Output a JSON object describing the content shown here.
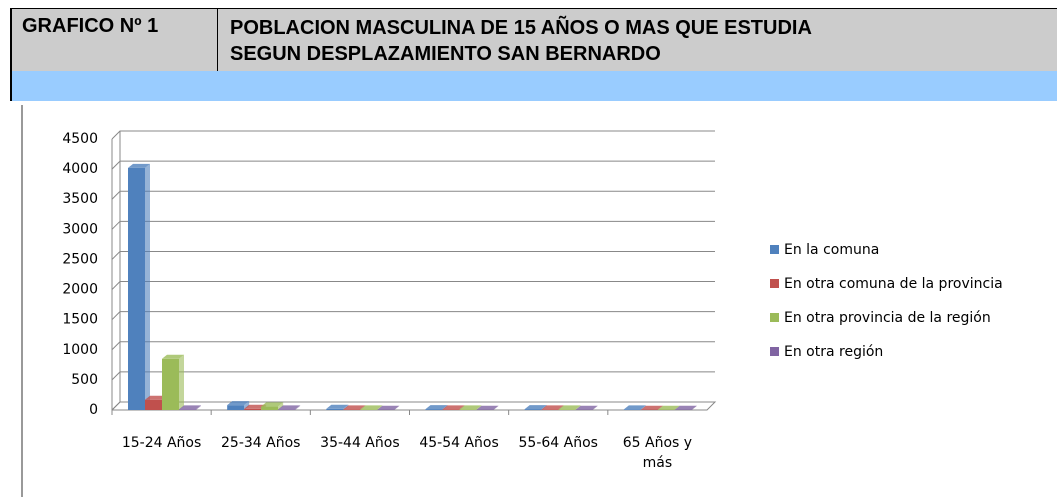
{
  "header": {
    "label": "GRAFICO Nº 1",
    "title_lines": [
      "POBLACION MASCULINA DE 15 AÑOS O MAS QUE ESTUDIA",
      "SEGUN DESPLAZAMIENTO SAN BERNARDO"
    ]
  },
  "chart_data": {
    "type": "bar",
    "categories": [
      "15-24 Años",
      "25-34 Años",
      "35-44 Años",
      "45-54 Años",
      "55-64 Años",
      "65 Años y más"
    ],
    "series": [
      {
        "name": "En la comuna",
        "color": "#4f81bd",
        "values": [
          4020,
          80,
          20,
          15,
          15,
          10
        ]
      },
      {
        "name": "En otra comuna de la provincia",
        "color": "#c0504d",
        "values": [
          170,
          20,
          10,
          10,
          10,
          5
        ]
      },
      {
        "name": "En otra provincia de la región",
        "color": "#9bbb59",
        "values": [
          850,
          60,
          10,
          10,
          10,
          5
        ]
      },
      {
        "name": "En otra región",
        "color": "#8064a2",
        "values": [
          10,
          10,
          5,
          5,
          5,
          5
        ]
      }
    ],
    "ylim": [
      0,
      4500
    ],
    "yticks": [
      0,
      500,
      1000,
      1500,
      2000,
      2500,
      3000,
      3500,
      4000,
      4500
    ],
    "grid": true,
    "legend": "right"
  }
}
